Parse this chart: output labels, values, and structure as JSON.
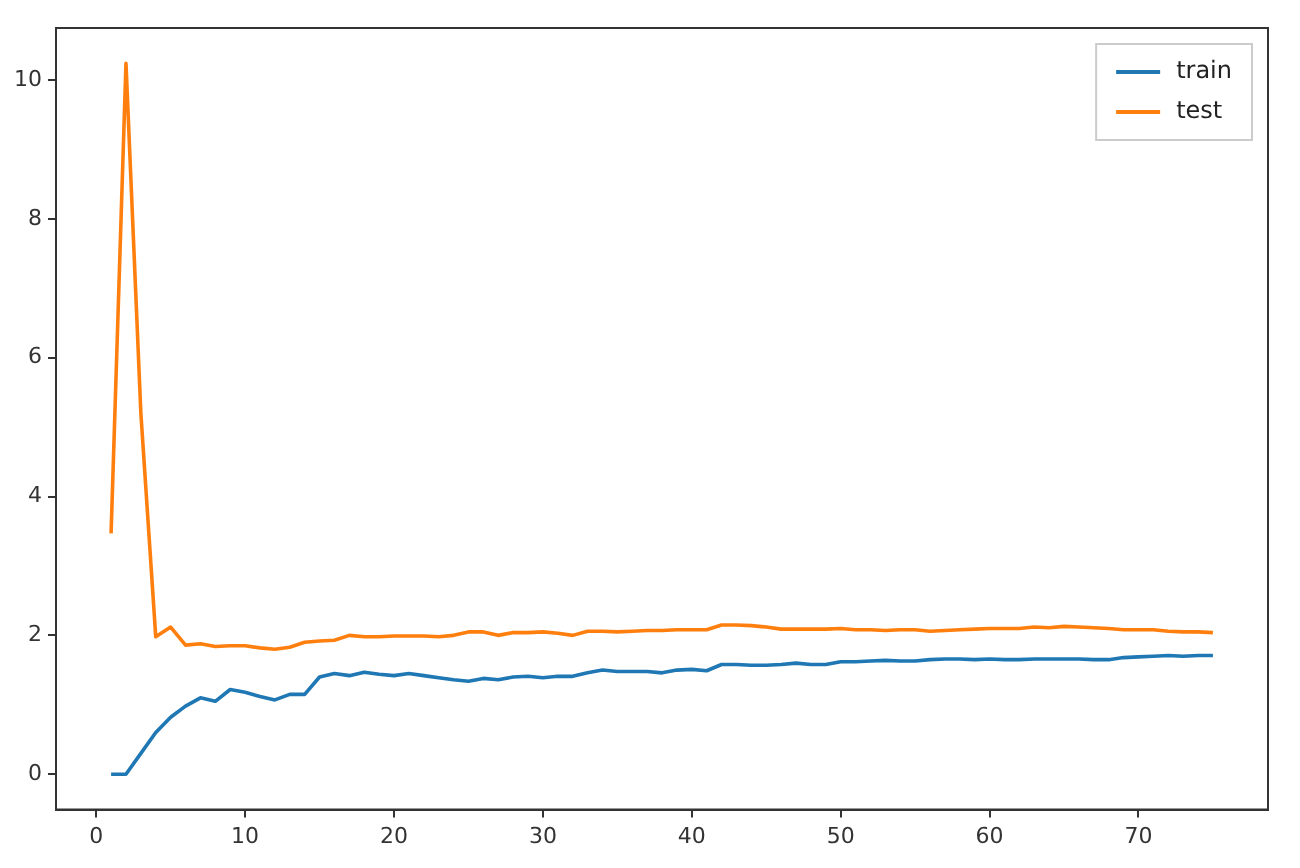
{
  "chart_data": {
    "type": "line",
    "x": [
      1,
      2,
      3,
      4,
      5,
      6,
      7,
      8,
      9,
      10,
      11,
      12,
      13,
      14,
      15,
      16,
      17,
      18,
      19,
      20,
      21,
      22,
      23,
      24,
      25,
      26,
      27,
      28,
      29,
      30,
      31,
      32,
      33,
      34,
      35,
      36,
      37,
      38,
      39,
      40,
      41,
      42,
      43,
      44,
      45,
      46,
      47,
      48,
      49,
      50,
      51,
      52,
      53,
      54,
      55,
      56,
      57,
      58,
      59,
      60,
      61,
      62,
      63,
      64,
      65,
      66,
      67,
      68,
      69,
      70,
      71,
      72,
      73,
      74,
      75
    ],
    "series": [
      {
        "name": "train",
        "color": "#1f77b4",
        "values": [
          0,
          0,
          0.3,
          0.6,
          0.82,
          0.98,
          1.1,
          1.05,
          1.22,
          1.18,
          1.12,
          1.07,
          1.15,
          1.15,
          1.4,
          1.45,
          1.42,
          1.47,
          1.44,
          1.42,
          1.45,
          1.42,
          1.39,
          1.36,
          1.34,
          1.38,
          1.36,
          1.4,
          1.41,
          1.39,
          1.41,
          1.41,
          1.46,
          1.5,
          1.48,
          1.48,
          1.48,
          1.46,
          1.5,
          1.51,
          1.49,
          1.58,
          1.58,
          1.57,
          1.57,
          1.58,
          1.6,
          1.58,
          1.58,
          1.62,
          1.62,
          1.63,
          1.64,
          1.63,
          1.63,
          1.65,
          1.66,
          1.66,
          1.65,
          1.66,
          1.65,
          1.65,
          1.66,
          1.66,
          1.66,
          1.66,
          1.65,
          1.65,
          1.68,
          1.69,
          1.7,
          1.71,
          1.7,
          1.71,
          1.71
        ]
      },
      {
        "name": "test",
        "color": "#ff7f0e",
        "values": [
          3.47,
          10.24,
          5.2,
          1.98,
          2.12,
          1.86,
          1.88,
          1.84,
          1.85,
          1.85,
          1.82,
          1.8,
          1.83,
          1.9,
          1.92,
          1.93,
          2.0,
          1.98,
          1.98,
          1.99,
          1.99,
          1.99,
          1.98,
          2.0,
          2.05,
          2.05,
          2.0,
          2.04,
          2.04,
          2.05,
          2.03,
          2.0,
          2.06,
          2.06,
          2.05,
          2.06,
          2.07,
          2.07,
          2.08,
          2.08,
          2.08,
          2.15,
          2.15,
          2.14,
          2.12,
          2.09,
          2.09,
          2.09,
          2.09,
          2.1,
          2.08,
          2.08,
          2.07,
          2.08,
          2.08,
          2.06,
          2.07,
          2.08,
          2.09,
          2.1,
          2.1,
          2.1,
          2.12,
          2.11,
          2.13,
          2.12,
          2.11,
          2.1,
          2.08,
          2.08,
          2.08,
          2.06,
          2.05,
          2.05,
          2.04
        ]
      }
    ],
    "xlim": [
      -2.7,
      78.7
    ],
    "ylim": [
      -0.51,
      10.75
    ],
    "xticks": [
      0,
      10,
      20,
      30,
      40,
      50,
      60,
      70
    ],
    "yticks": [
      0,
      2,
      4,
      6,
      8,
      10
    ],
    "grid": false,
    "legend": "top right",
    "marker": "none",
    "line_style": "solid"
  }
}
